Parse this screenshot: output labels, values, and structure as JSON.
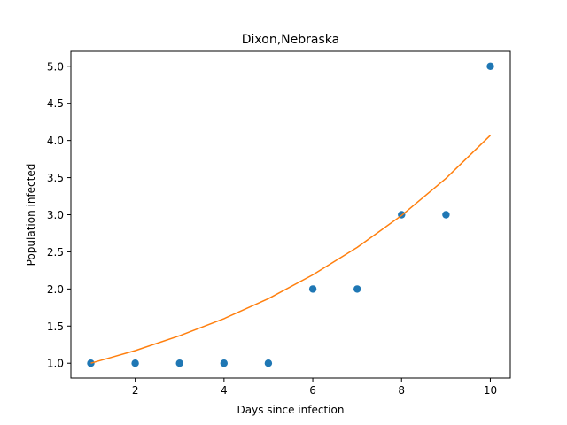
{
  "chart_data": {
    "type": "scatter",
    "title": "Dixon,Nebraska",
    "xlabel": "Days since infection",
    "ylabel": "Population infected",
    "xlim": [
      0.55,
      10.45
    ],
    "ylim": [
      0.8,
      5.2
    ],
    "xticks": [
      2,
      4,
      6,
      8,
      10
    ],
    "xtick_labels": [
      "2",
      "4",
      "6",
      "8",
      "10"
    ],
    "yticks": [
      1.0,
      1.5,
      2.0,
      2.5,
      3.0,
      3.5,
      4.0,
      4.5,
      5.0
    ],
    "ytick_labels": [
      "1.0",
      "1.5",
      "2.0",
      "2.5",
      "3.0",
      "3.5",
      "4.0",
      "4.5",
      "5.0"
    ],
    "grid": false,
    "series": [
      {
        "kind": "scatter",
        "color": "#1f77b4",
        "x": [
          1,
          2,
          3,
          4,
          5,
          6,
          7,
          8,
          9,
          10
        ],
        "y": [
          1,
          1,
          1,
          1,
          1,
          2,
          2,
          3,
          3,
          5
        ]
      },
      {
        "kind": "line",
        "color": "#ff7f0e",
        "x": [
          1,
          2,
          3,
          4,
          5,
          6,
          7,
          8,
          9,
          10
        ],
        "y": [
          1.0,
          1.17,
          1.37,
          1.6,
          1.87,
          2.19,
          2.56,
          2.99,
          3.49,
          4.07
        ]
      }
    ]
  }
}
